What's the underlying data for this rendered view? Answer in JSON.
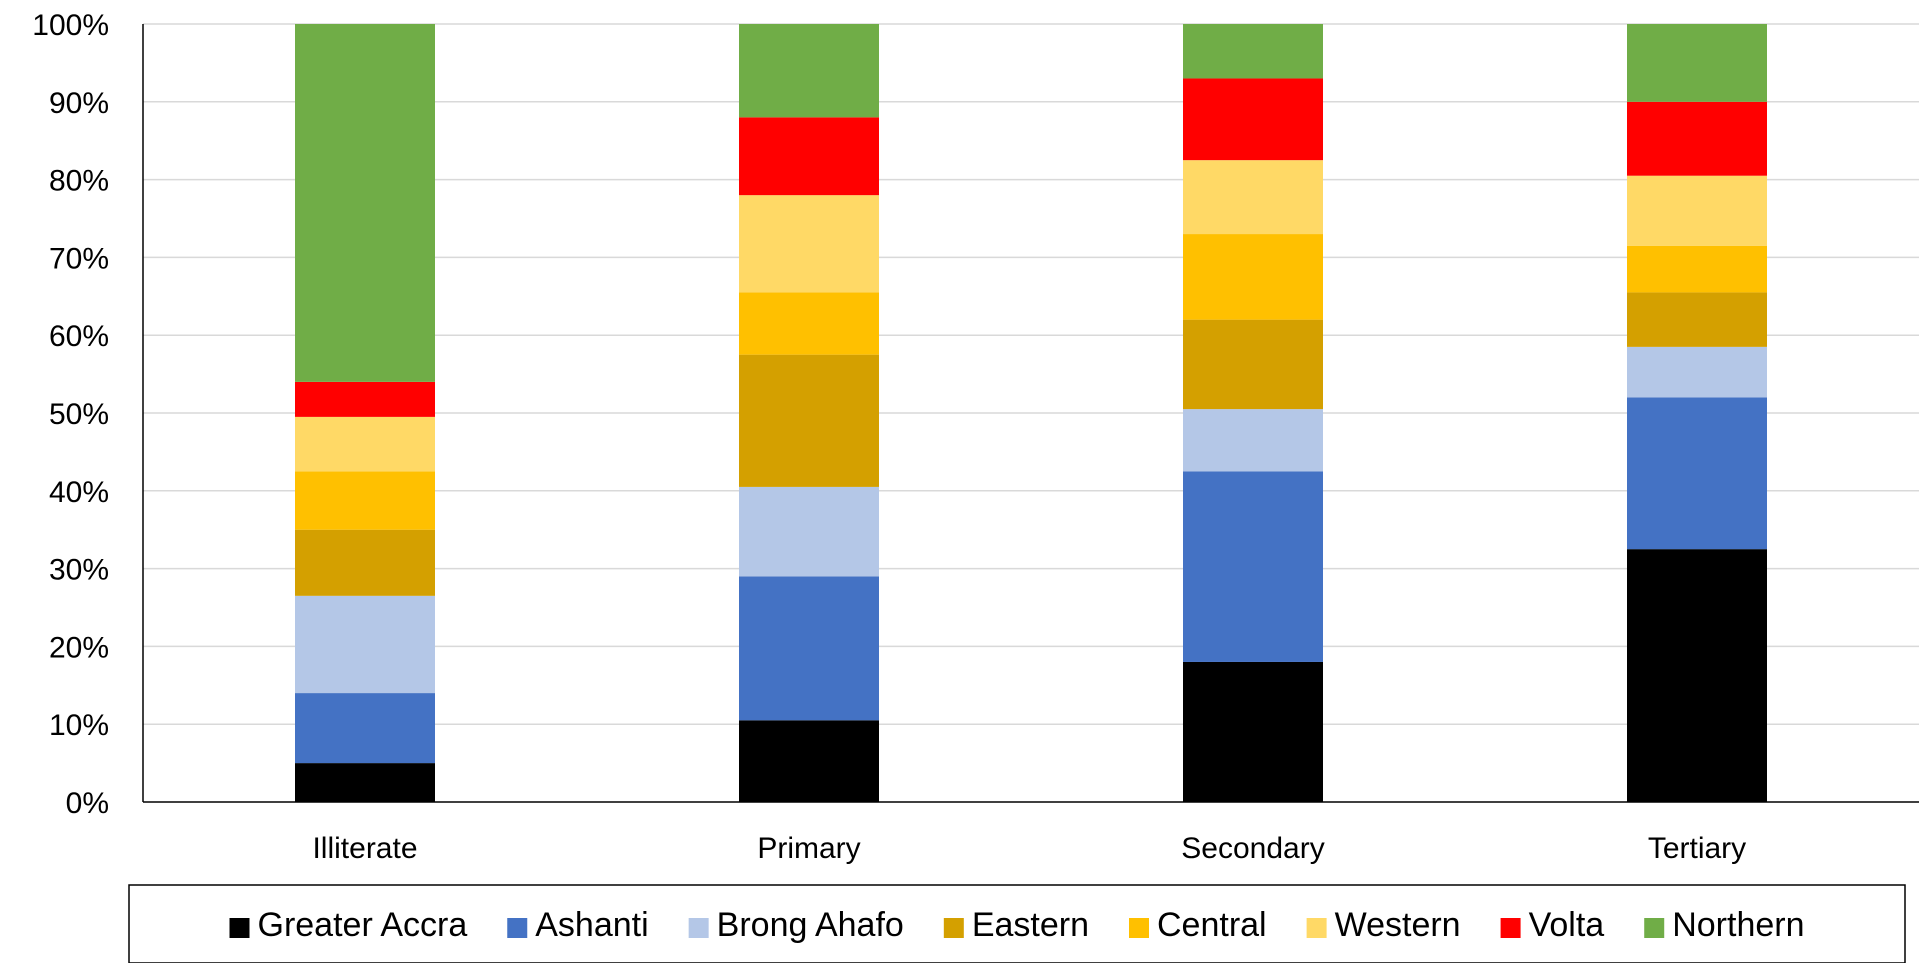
{
  "chart_data": {
    "type": "bar",
    "stacked": true,
    "percent_stacked": true,
    "categories": [
      "Illiterate",
      "Primary",
      "Secondary",
      "Tertiary"
    ],
    "ylim": [
      0,
      100
    ],
    "yticks": [
      "0%",
      "10%",
      "20%",
      "30%",
      "40%",
      "50%",
      "60%",
      "70%",
      "80%",
      "90%",
      "100%"
    ],
    "grid": true,
    "legend_position": "bottom",
    "series": [
      {
        "name": "Greater Accra",
        "color": "#000000",
        "values": [
          5,
          10.5,
          18,
          32.5
        ]
      },
      {
        "name": "Ashanti",
        "color": "#4472C4",
        "values": [
          9,
          18.5,
          24.5,
          19.5
        ]
      },
      {
        "name": "Brong Ahafo",
        "color": "#B4C7E7",
        "values": [
          12.5,
          11.5,
          8,
          6.5
        ]
      },
      {
        "name": "Eastern",
        "color": "#D4A000",
        "values": [
          8.5,
          17,
          11.5,
          7
        ]
      },
      {
        "name": "Central",
        "color": "#FFC000",
        "values": [
          7.5,
          8,
          11,
          6
        ]
      },
      {
        "name": "Western",
        "color": "#FFD966",
        "values": [
          7,
          12.5,
          9.5,
          9
        ]
      },
      {
        "name": "Volta",
        "color": "#FF0000",
        "values": [
          4.5,
          10,
          10.5,
          9.5
        ]
      },
      {
        "name": "Northern",
        "color": "#70AD47",
        "values": [
          46,
          12,
          7,
          10
        ]
      }
    ]
  }
}
